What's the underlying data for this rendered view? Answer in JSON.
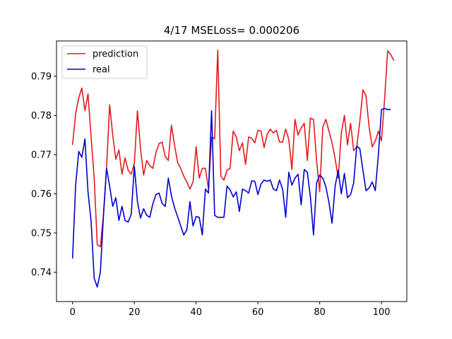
{
  "chart_data": {
    "type": "line",
    "title": "4/17 MSELoss= 0.000206",
    "xlabel": "",
    "ylabel": "",
    "xlim": [
      -5.2,
      108.2
    ],
    "ylim": [
      0.7325,
      0.799
    ],
    "xticks": [
      0,
      20,
      40,
      60,
      80,
      100
    ],
    "xtick_labels": [
      "0",
      "20",
      "40",
      "60",
      "80",
      "100"
    ],
    "yticks": [
      0.74,
      0.75,
      0.76,
      0.77,
      0.78,
      0.79
    ],
    "ytick_labels": [
      "0.74",
      "0.75",
      "0.76",
      "0.77",
      "0.78",
      "0.79"
    ],
    "grid": false,
    "legend_position": "top-left",
    "series": [
      {
        "name": "prediction",
        "color": "#e41a1c",
        "values": [
          0.7725,
          0.7805,
          0.7845,
          0.787,
          0.7812,
          0.7855,
          0.7745,
          0.764,
          0.747,
          0.7465,
          0.7545,
          0.7665,
          0.7827,
          0.775,
          0.7688,
          0.7712,
          0.765,
          0.7692,
          0.766,
          0.765,
          0.7678,
          0.7812,
          0.7715,
          0.7648,
          0.7685,
          0.7672,
          0.7665,
          0.7705,
          0.7728,
          0.7732,
          0.7695,
          0.7685,
          0.7775,
          0.7725,
          0.768,
          0.7665,
          0.7645,
          0.763,
          0.7612,
          0.763,
          0.772,
          0.764,
          0.7665,
          0.7665,
          0.7612,
          0.7745,
          0.774,
          0.7967,
          0.7645,
          0.7635,
          0.766,
          0.7665,
          0.776,
          0.7745,
          0.771,
          0.773,
          0.7675,
          0.7745,
          0.7742,
          0.773,
          0.7762,
          0.776,
          0.7718,
          0.7752,
          0.7765,
          0.7755,
          0.7762,
          0.7732,
          0.7732,
          0.7765,
          0.7738,
          0.7662,
          0.779,
          0.775,
          0.7768,
          0.778,
          0.7685,
          0.7793,
          0.779,
          0.7685,
          0.7605,
          0.777,
          0.779,
          0.776,
          0.773,
          0.769,
          0.764,
          0.7755,
          0.78,
          0.7725,
          0.778,
          0.771,
          0.772,
          0.7785,
          0.7865,
          0.785,
          0.777,
          0.772,
          0.7735,
          0.776,
          0.7735,
          0.784,
          0.7965,
          0.7955,
          0.794
        ]
      },
      {
        "name": "real",
        "color": "#0000cc",
        "values": [
          0.7435,
          0.7622,
          0.7708,
          0.7693,
          0.774,
          0.7605,
          0.753,
          0.7385,
          0.7362,
          0.74,
          0.7545,
          0.7665,
          0.762,
          0.7568,
          0.759,
          0.7532,
          0.7568,
          0.7532,
          0.7528,
          0.7548,
          0.767,
          0.758,
          0.7538,
          0.7562,
          0.7545,
          0.754,
          0.7575,
          0.7598,
          0.7602,
          0.7575,
          0.7568,
          0.764,
          0.7595,
          0.7565,
          0.7542,
          0.7518,
          0.7495,
          0.7508,
          0.758,
          0.7518,
          0.7542,
          0.754,
          0.7495,
          0.7612,
          0.7602,
          0.7812,
          0.7545,
          0.754,
          0.754,
          0.754,
          0.762,
          0.761,
          0.7592,
          0.7605,
          0.7555,
          0.7612,
          0.7608,
          0.7602,
          0.7633,
          0.7632,
          0.7598,
          0.7625,
          0.7635,
          0.7632,
          0.7635,
          0.7612,
          0.7608,
          0.7635,
          0.7612,
          0.754,
          0.7655,
          0.7622,
          0.764,
          0.765,
          0.7572,
          0.7662,
          0.7655,
          0.7592,
          0.7495,
          0.7628,
          0.7648,
          0.764,
          0.7618,
          0.7578,
          0.7525,
          0.762,
          0.766,
          0.76,
          0.7652,
          0.759,
          0.7598,
          0.7628,
          0.7722,
          0.7715,
          0.766,
          0.7608,
          0.7615,
          0.763,
          0.7608,
          0.77,
          0.7815,
          0.7818,
          0.7815,
          0.7815
        ]
      }
    ]
  }
}
